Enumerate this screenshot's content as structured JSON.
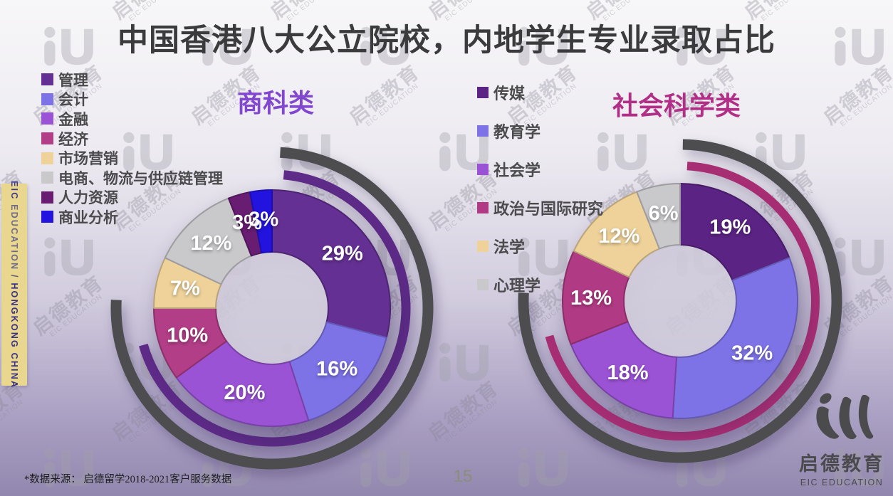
{
  "page": {
    "title": "中国香港八大公立院校，内地学生专业录取占比",
    "page_number": "15",
    "footnote": "*数据来源： 启德留学2018-2021客户服务数据"
  },
  "sidebar": {
    "bg_color": "#e9d78f",
    "text_eic": "EIC",
    "text_education": " EDUCATION ",
    "separator": "/",
    "text_region": " HONGKONG CHINA"
  },
  "watermark": {
    "cn": "启德教育",
    "en": "EIC EDUCATION",
    "logo": "iU-logo"
  },
  "brand": {
    "logo_icon": "eic-flame-logo",
    "cn": "启德教育",
    "en": "EIC EDUCATION"
  },
  "chart_data": [
    {
      "type": "pie",
      "subtype": "donut",
      "title": "商科类",
      "title_color": "#8247cf",
      "unit": "%",
      "legend_position": "left",
      "start_angle_deg": 0,
      "direction": "clockwise",
      "slices": [
        {
          "label": "管理",
          "value": 29,
          "color": "#643093"
        },
        {
          "label": "会计",
          "value": 16,
          "color": "#7d72e6"
        },
        {
          "label": "金融",
          "value": 20,
          "color": "#9b53d6"
        },
        {
          "label": "经济",
          "value": 10,
          "color": "#b23e87"
        },
        {
          "label": "市场营销",
          "value": 7,
          "color": "#eed29a"
        },
        {
          "label": "电商、物流与供应链管理",
          "value": 12,
          "color": "#c9c8cb"
        },
        {
          "label": "人力资源",
          "value": 3,
          "color": "#681c72"
        },
        {
          "label": "商业分析",
          "value": 3,
          "color": "#2213de"
        }
      ],
      "decor_arcs": [
        {
          "name": "outer-gray-ring",
          "color": "#4d4d4f",
          "radius": 219,
          "thickness": 15,
          "start_deg": 3,
          "end_deg": 273
        },
        {
          "name": "inner-purple-ring",
          "color": "#5e2b88",
          "radius": 188,
          "thickness": 13,
          "start_deg": 5,
          "end_deg": 254
        }
      ]
    },
    {
      "type": "pie",
      "subtype": "donut",
      "title": "社会科学类",
      "title_color": "#b12f87",
      "unit": "%",
      "legend_position": "left",
      "start_angle_deg": 0,
      "direction": "clockwise",
      "slices": [
        {
          "label": "传媒",
          "value": 19,
          "color": "#5b2384"
        },
        {
          "label": "教育学",
          "value": 32,
          "color": "#7e73e6"
        },
        {
          "label": "社会学",
          "value": 18,
          "color": "#9b53d6"
        },
        {
          "label": "政治与国际研究",
          "value": 13,
          "color": "#b13a84"
        },
        {
          "label": "法学",
          "value": 12,
          "color": "#eed29a"
        },
        {
          "label": "心理学",
          "value": 6,
          "color": "#c9c8cb"
        }
      ],
      "decor_arcs": [
        {
          "name": "outer-gray-ring",
          "color": "#4d4d4f",
          "radius": 220,
          "thickness": 15,
          "start_deg": 1,
          "end_deg": 273
        },
        {
          "name": "inner-magenta-ring",
          "color": "#a82e74",
          "radius": 190,
          "thickness": 12,
          "start_deg": 3,
          "end_deg": 255
        }
      ]
    }
  ]
}
